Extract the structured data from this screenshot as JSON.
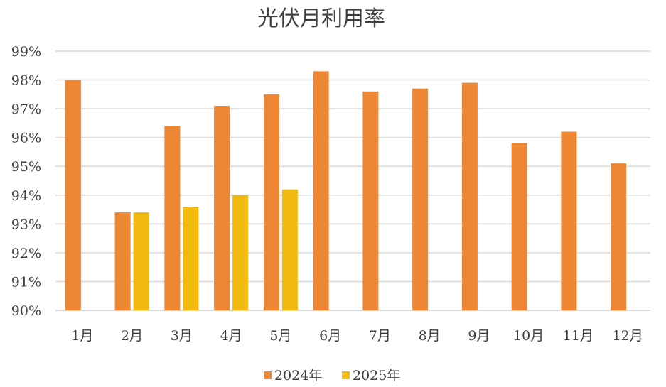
{
  "chart_data": {
    "type": "bar",
    "title": "光伏月利用率",
    "categories": [
      "1月",
      "2月",
      "3月",
      "4月",
      "5月",
      "6月",
      "7月",
      "8月",
      "9月",
      "10月",
      "11月",
      "12月"
    ],
    "series": [
      {
        "name": "2024年",
        "color": "#ED8733",
        "values": [
          98.0,
          93.4,
          96.4,
          97.1,
          97.5,
          98.3,
          97.6,
          97.7,
          97.9,
          95.8,
          96.2,
          95.1
        ]
      },
      {
        "name": "2025年",
        "color": "#F2BA0E",
        "values": [
          null,
          93.4,
          93.6,
          94.0,
          94.2,
          null,
          null,
          null,
          null,
          null,
          null,
          null
        ]
      }
    ],
    "ylim": [
      90,
      99
    ],
    "yticks": [
      "90%",
      "91%",
      "92%",
      "93%",
      "94%",
      "95%",
      "96%",
      "97%",
      "98%",
      "99%"
    ],
    "grid": true,
    "legend": "bottom"
  }
}
